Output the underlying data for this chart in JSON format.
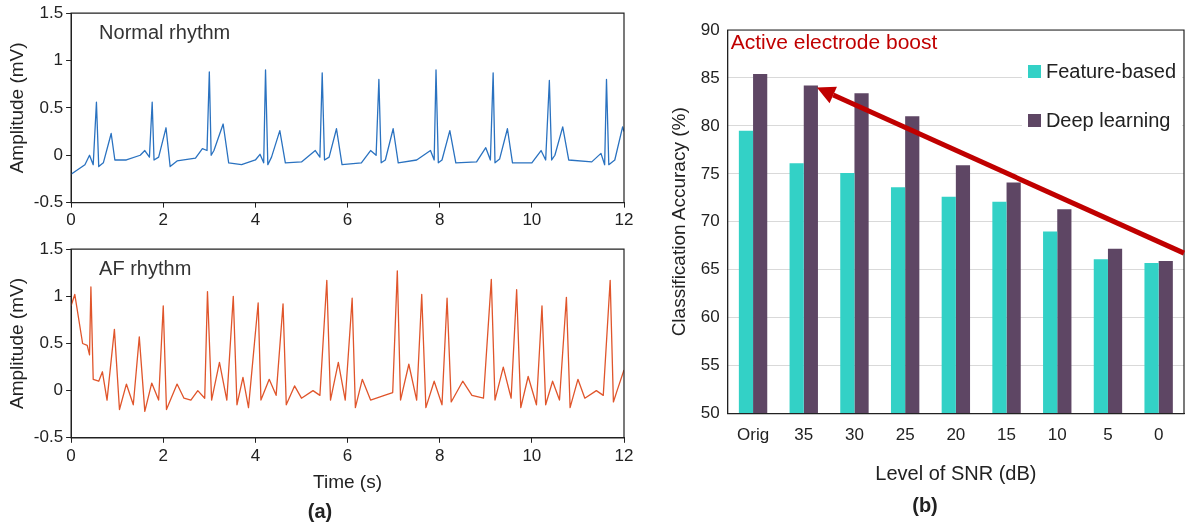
{
  "chart_data": [
    {
      "type": "line",
      "ylabel": "Amplitude (mV)",
      "xlim": [
        0,
        12
      ],
      "xticks": [
        0,
        2,
        4,
        6,
        8,
        10,
        12
      ],
      "ylim": [
        -0.5,
        1.5
      ],
      "yticks": [
        -0.5,
        0,
        0.5,
        1,
        1.5
      ],
      "series": [
        {
          "name": "Normal rhythm",
          "color": "#2a72c0",
          "x": [
            0,
            0.3,
            0.4,
            0.48,
            0.55,
            0.6,
            0.7,
            0.87,
            0.95,
            1.2,
            1.5,
            1.6,
            1.7,
            1.76,
            1.8,
            1.9,
            2.06,
            2.15,
            2.3,
            2.7,
            2.85,
            2.95,
            3.0,
            3.04,
            3.1,
            3.3,
            3.42,
            3.7,
            4.0,
            4.1,
            4.18,
            4.22,
            4.27,
            4.35,
            4.53,
            4.65,
            5.0,
            5.3,
            5.4,
            5.45,
            5.5,
            5.6,
            5.76,
            5.88,
            6.3,
            6.5,
            6.62,
            6.68,
            6.73,
            6.82,
            6.99,
            7.1,
            7.5,
            7.8,
            7.88,
            7.92,
            7.97,
            8.05,
            8.22,
            8.35,
            8.8,
            9.0,
            9.1,
            9.16,
            9.2,
            9.3,
            9.47,
            9.58,
            10.0,
            10.2,
            10.3,
            10.38,
            10.43,
            10.5,
            10.67,
            10.8,
            11.3,
            11.5,
            11.58,
            11.62,
            11.67,
            11.8,
            11.97,
            12.0
          ],
          "values": [
            -0.2,
            -0.1,
            0.0,
            -0.1,
            0.56,
            -0.12,
            -0.08,
            0.23,
            -0.05,
            -0.05,
            0.0,
            0.05,
            -0.02,
            0.56,
            -0.05,
            -0.02,
            0.29,
            -0.12,
            -0.06,
            -0.03,
            0.07,
            0.05,
            0.88,
            0.0,
            0.05,
            0.33,
            -0.08,
            -0.1,
            -0.05,
            0.01,
            -0.08,
            0.9,
            -0.1,
            -0.02,
            0.26,
            -0.08,
            -0.07,
            0.05,
            -0.02,
            0.87,
            -0.05,
            -0.02,
            0.28,
            -0.1,
            -0.08,
            0.05,
            0.0,
            0.8,
            -0.08,
            -0.05,
            0.28,
            -0.08,
            -0.05,
            0.05,
            -0.05,
            0.9,
            -0.08,
            -0.05,
            0.26,
            -0.08,
            -0.07,
            0.08,
            -0.05,
            0.87,
            -0.08,
            -0.04,
            0.28,
            -0.08,
            -0.08,
            0.05,
            -0.05,
            0.79,
            -0.05,
            0.0,
            0.3,
            -0.05,
            -0.07,
            0.02,
            -0.1,
            0.8,
            -0.1,
            -0.05,
            0.3,
            0.25
          ]
        }
      ]
    },
    {
      "type": "line",
      "xlabel": "Time (s)",
      "ylabel": "Amplitude (mV)",
      "xlim": [
        0,
        12
      ],
      "xticks": [
        0,
        2,
        4,
        6,
        8,
        10,
        12
      ],
      "ylim": [
        -0.5,
        1.5
      ],
      "yticks": [
        -0.5,
        0,
        0.5,
        1,
        1.5
      ],
      "annotations": [
        "(a)"
      ],
      "series": [
        {
          "name": "AF rhythm",
          "color": "#e0552b",
          "x": [
            0,
            0.08,
            0.25,
            0.35,
            0.4,
            0.43,
            0.48,
            0.6,
            0.68,
            0.78,
            0.94,
            1.05,
            1.2,
            1.35,
            1.48,
            1.6,
            1.75,
            1.9,
            2.0,
            2.07,
            2.3,
            2.45,
            2.6,
            2.75,
            2.9,
            2.96,
            3.05,
            3.22,
            3.38,
            3.52,
            3.6,
            3.73,
            3.85,
            4.06,
            4.12,
            4.3,
            4.45,
            4.6,
            4.67,
            4.85,
            5.0,
            5.25,
            5.4,
            5.55,
            5.63,
            5.8,
            5.95,
            6.1,
            6.17,
            6.32,
            6.5,
            6.8,
            6.98,
            7.08,
            7.15,
            7.33,
            7.5,
            7.61,
            7.7,
            7.88,
            8.05,
            8.16,
            8.25,
            8.5,
            8.7,
            8.95,
            9.12,
            9.2,
            9.38,
            9.55,
            9.67,
            9.76,
            9.92,
            10.1,
            10.22,
            10.3,
            10.45,
            10.6,
            10.75,
            10.83,
            11.0,
            11.15,
            11.4,
            11.55,
            11.7,
            11.77,
            11.85,
            12.0
          ],
          "values": [
            0.9,
            1.02,
            0.5,
            0.48,
            0.38,
            1.1,
            0.12,
            0.1,
            0.2,
            -0.1,
            0.65,
            -0.2,
            0.07,
            -0.15,
            0.57,
            -0.22,
            0.08,
            -0.1,
            0.9,
            -0.2,
            0.07,
            -0.08,
            -0.1,
            0.0,
            -0.08,
            1.05,
            -0.1,
            0.3,
            -0.1,
            1.0,
            -0.15,
            0.14,
            -0.18,
            0.93,
            -0.1,
            0.12,
            -0.05,
            0.92,
            -0.15,
            0.05,
            -0.08,
            0.0,
            -0.05,
            1.17,
            -0.1,
            0.3,
            -0.1,
            0.98,
            -0.18,
            0.12,
            -0.1,
            -0.05,
            -0.02,
            1.27,
            -0.1,
            0.28,
            -0.1,
            1.02,
            -0.18,
            0.1,
            -0.15,
            0.98,
            -0.12,
            0.1,
            -0.05,
            -0.08,
            1.18,
            -0.1,
            0.25,
            -0.08,
            1.07,
            -0.18,
            0.15,
            -0.15,
            0.9,
            -0.15,
            0.1,
            -0.1,
            0.99,
            -0.18,
            0.12,
            -0.08,
            0.0,
            -0.05,
            1.17,
            -0.12,
            0.0,
            0.22
          ]
        }
      ]
    },
    {
      "type": "bar",
      "xlabel": "Level of SNR (dB)",
      "ylabel": "Classification Accuracy (%)",
      "categories": [
        "Orig",
        "35",
        "30",
        "25",
        "20",
        "15",
        "10",
        "5",
        "0"
      ],
      "ylim": [
        50,
        90
      ],
      "yticks": [
        50,
        55,
        60,
        65,
        70,
        75,
        80,
        85,
        90
      ],
      "grid": "y",
      "legend": "top right",
      "annotations": [
        "Active electrode boost",
        "(b)"
      ],
      "series": [
        {
          "name": "Feature-based",
          "color": "#33d1c6",
          "values": [
            79.5,
            76.1,
            75.1,
            73.6,
            72.6,
            72.1,
            69,
            66.1,
            65.7
          ]
        },
        {
          "name": "Deep learning",
          "color": "#5e4664",
          "values": [
            85.4,
            84.2,
            83.4,
            81,
            75.9,
            74.1,
            71.3,
            67.2,
            65.9
          ]
        }
      ]
    }
  ]
}
